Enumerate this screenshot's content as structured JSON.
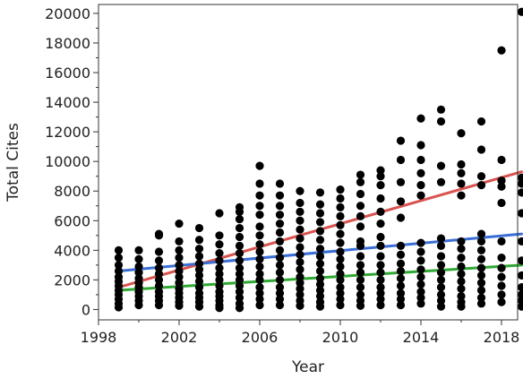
{
  "chart_data": {
    "type": "scatter",
    "xlabel": "Year",
    "ylabel": "Total Cites",
    "xlim": [
      1998,
      2018.8
    ],
    "ylim": [
      -700,
      20600
    ],
    "xticks": [
      1998,
      2002,
      2006,
      2010,
      2014,
      2018
    ],
    "xticks_minor": [
      2000,
      2004,
      2008,
      2012,
      2016
    ],
    "yticks": [
      0,
      2000,
      4000,
      6000,
      8000,
      10000,
      12000,
      14000,
      16000,
      18000,
      20000
    ],
    "yticks_minor": [
      1000,
      3000,
      5000,
      7000,
      9000,
      11000,
      13000,
      15000,
      17000,
      19000
    ],
    "grid": false,
    "point_color": "#000000",
    "points": [
      [
        1999,
        4000
      ],
      [
        1999,
        3500
      ],
      [
        1999,
        3000
      ],
      [
        1999,
        2600
      ],
      [
        1999,
        2200
      ],
      [
        1999,
        1900
      ],
      [
        1999,
        1600
      ],
      [
        1999,
        1300
      ],
      [
        1999,
        1000
      ],
      [
        1999,
        700
      ],
      [
        1999,
        400
      ],
      [
        1999,
        150
      ],
      [
        2000,
        4000
      ],
      [
        2000,
        3400
      ],
      [
        2000,
        2900
      ],
      [
        2000,
        2500
      ],
      [
        2000,
        2100
      ],
      [
        2000,
        1800
      ],
      [
        2000,
        1500
      ],
      [
        2000,
        1200
      ],
      [
        2000,
        900
      ],
      [
        2000,
        600
      ],
      [
        2000,
        300
      ],
      [
        2001,
        5100
      ],
      [
        2001,
        5000
      ],
      [
        2001,
        3900
      ],
      [
        2001,
        3300
      ],
      [
        2001,
        2800
      ],
      [
        2001,
        2400
      ],
      [
        2001,
        2000
      ],
      [
        2001,
        1600
      ],
      [
        2001,
        1200
      ],
      [
        2001,
        900
      ],
      [
        2001,
        600
      ],
      [
        2001,
        300
      ],
      [
        2002,
        5800
      ],
      [
        2002,
        4600
      ],
      [
        2002,
        4000
      ],
      [
        2002,
        3500
      ],
      [
        2002,
        3000
      ],
      [
        2002,
        2600
      ],
      [
        2002,
        2200
      ],
      [
        2002,
        1800
      ],
      [
        2002,
        1400
      ],
      [
        2002,
        1100
      ],
      [
        2002,
        800
      ],
      [
        2002,
        500
      ],
      [
        2002,
        250
      ],
      [
        2003,
        5500
      ],
      [
        2003,
        4700
      ],
      [
        2003,
        4100
      ],
      [
        2003,
        3600
      ],
      [
        2003,
        3100
      ],
      [
        2003,
        2700
      ],
      [
        2003,
        2300
      ],
      [
        2003,
        1900
      ],
      [
        2003,
        1500
      ],
      [
        2003,
        1100
      ],
      [
        2003,
        800
      ],
      [
        2003,
        500
      ],
      [
        2003,
        200
      ],
      [
        2004,
        6500
      ],
      [
        2004,
        5000
      ],
      [
        2004,
        4400
      ],
      [
        2004,
        3800
      ],
      [
        2004,
        3300
      ],
      [
        2004,
        2800
      ],
      [
        2004,
        2400
      ],
      [
        2004,
        2000
      ],
      [
        2004,
        1600
      ],
      [
        2004,
        1200
      ],
      [
        2004,
        900
      ],
      [
        2004,
        600
      ],
      [
        2004,
        300
      ],
      [
        2004,
        100
      ],
      [
        2005,
        6900
      ],
      [
        2005,
        6600
      ],
      [
        2005,
        6100
      ],
      [
        2005,
        5500
      ],
      [
        2005,
        4900
      ],
      [
        2005,
        4300
      ],
      [
        2005,
        3800
      ],
      [
        2005,
        3300
      ],
      [
        2005,
        2800
      ],
      [
        2005,
        2400
      ],
      [
        2005,
        2000
      ],
      [
        2005,
        1600
      ],
      [
        2005,
        1200
      ],
      [
        2005,
        800
      ],
      [
        2005,
        400
      ],
      [
        2005,
        100
      ],
      [
        2006,
        9700
      ],
      [
        2006,
        8500
      ],
      [
        2006,
        7700
      ],
      [
        2006,
        7000
      ],
      [
        2006,
        6400
      ],
      [
        2006,
        5600
      ],
      [
        2006,
        5000
      ],
      [
        2006,
        4400
      ],
      [
        2006,
        3900
      ],
      [
        2006,
        3400
      ],
      [
        2006,
        2900
      ],
      [
        2006,
        2400
      ],
      [
        2006,
        2000
      ],
      [
        2006,
        1500
      ],
      [
        2006,
        1100
      ],
      [
        2006,
        700
      ],
      [
        2006,
        300
      ],
      [
        2007,
        8500
      ],
      [
        2007,
        7700
      ],
      [
        2007,
        7000
      ],
      [
        2007,
        6400
      ],
      [
        2007,
        5800
      ],
      [
        2007,
        5200
      ],
      [
        2007,
        4600
      ],
      [
        2007,
        4000
      ],
      [
        2007,
        3500
      ],
      [
        2007,
        3000
      ],
      [
        2007,
        2500
      ],
      [
        2007,
        2000
      ],
      [
        2007,
        1500
      ],
      [
        2007,
        1100
      ],
      [
        2007,
        700
      ],
      [
        2007,
        300
      ],
      [
        2008,
        8000
      ],
      [
        2008,
        7200
      ],
      [
        2008,
        6600
      ],
      [
        2008,
        6000
      ],
      [
        2008,
        5400
      ],
      [
        2008,
        4800
      ],
      [
        2008,
        4200
      ],
      [
        2008,
        3700
      ],
      [
        2008,
        3200
      ],
      [
        2008,
        2700
      ],
      [
        2008,
        2200
      ],
      [
        2008,
        1800
      ],
      [
        2008,
        1400
      ],
      [
        2008,
        1000
      ],
      [
        2008,
        600
      ],
      [
        2008,
        250
      ],
      [
        2009,
        7900
      ],
      [
        2009,
        7100
      ],
      [
        2009,
        6500
      ],
      [
        2009,
        5900
      ],
      [
        2009,
        5300
      ],
      [
        2009,
        4700
      ],
      [
        2009,
        4100
      ],
      [
        2009,
        3600
      ],
      [
        2009,
        3100
      ],
      [
        2009,
        2600
      ],
      [
        2009,
        2100
      ],
      [
        2009,
        1700
      ],
      [
        2009,
        1300
      ],
      [
        2009,
        900
      ],
      [
        2009,
        500
      ],
      [
        2009,
        200
      ],
      [
        2010,
        8100
      ],
      [
        2010,
        7500
      ],
      [
        2010,
        6900
      ],
      [
        2010,
        6300
      ],
      [
        2010,
        5700
      ],
      [
        2010,
        5100
      ],
      [
        2010,
        4500
      ],
      [
        2010,
        3900
      ],
      [
        2010,
        3400
      ],
      [
        2010,
        2900
      ],
      [
        2010,
        2400
      ],
      [
        2010,
        2000
      ],
      [
        2010,
        1500
      ],
      [
        2010,
        1100
      ],
      [
        2010,
        700
      ],
      [
        2010,
        300
      ],
      [
        2011,
        9100
      ],
      [
        2011,
        8600
      ],
      [
        2011,
        7800
      ],
      [
        2011,
        7000
      ],
      [
        2011,
        6300
      ],
      [
        2011,
        5600
      ],
      [
        2011,
        4600
      ],
      [
        2011,
        4300
      ],
      [
        2011,
        3600
      ],
      [
        2011,
        3000
      ],
      [
        2011,
        2500
      ],
      [
        2011,
        2000
      ],
      [
        2011,
        1500
      ],
      [
        2011,
        1000
      ],
      [
        2011,
        600
      ],
      [
        2011,
        250
      ],
      [
        2012,
        9400
      ],
      [
        2012,
        9000
      ],
      [
        2012,
        8400
      ],
      [
        2012,
        7500
      ],
      [
        2012,
        6600
      ],
      [
        2012,
        5800
      ],
      [
        2012,
        4900
      ],
      [
        2012,
        4300
      ],
      [
        2012,
        3600
      ],
      [
        2012,
        3000
      ],
      [
        2012,
        2500
      ],
      [
        2012,
        2000
      ],
      [
        2012,
        1500
      ],
      [
        2012,
        1100
      ],
      [
        2012,
        700
      ],
      [
        2012,
        300
      ],
      [
        2013,
        11400
      ],
      [
        2013,
        10100
      ],
      [
        2013,
        8600
      ],
      [
        2013,
        7300
      ],
      [
        2013,
        6200
      ],
      [
        2013,
        4300
      ],
      [
        2013,
        3700
      ],
      [
        2013,
        3100
      ],
      [
        2013,
        2600
      ],
      [
        2013,
        2100
      ],
      [
        2013,
        1600
      ],
      [
        2013,
        1100
      ],
      [
        2013,
        700
      ],
      [
        2013,
        300
      ],
      [
        2014,
        12900
      ],
      [
        2014,
        11100
      ],
      [
        2014,
        10100
      ],
      [
        2014,
        9200
      ],
      [
        2014,
        8400
      ],
      [
        2014,
        7700
      ],
      [
        2014,
        4500
      ],
      [
        2014,
        3900
      ],
      [
        2014,
        3300
      ],
      [
        2014,
        2700
      ],
      [
        2014,
        2200
      ],
      [
        2014,
        1700
      ],
      [
        2014,
        1200
      ],
      [
        2014,
        800
      ],
      [
        2014,
        400
      ],
      [
        2015,
        13500
      ],
      [
        2015,
        12700
      ],
      [
        2015,
        9700
      ],
      [
        2015,
        8600
      ],
      [
        2015,
        4800
      ],
      [
        2015,
        4300
      ],
      [
        2015,
        3600
      ],
      [
        2015,
        3000
      ],
      [
        2015,
        2500
      ],
      [
        2015,
        2000
      ],
      [
        2015,
        1500
      ],
      [
        2015,
        1000
      ],
      [
        2015,
        600
      ],
      [
        2015,
        200
      ],
      [
        2016,
        11900
      ],
      [
        2016,
        9800
      ],
      [
        2016,
        9200
      ],
      [
        2016,
        8500
      ],
      [
        2016,
        7700
      ],
      [
        2016,
        4600
      ],
      [
        2016,
        4100
      ],
      [
        2016,
        3500
      ],
      [
        2016,
        2900
      ],
      [
        2016,
        2400
      ],
      [
        2016,
        1900
      ],
      [
        2016,
        1400
      ],
      [
        2016,
        900
      ],
      [
        2016,
        500
      ],
      [
        2016,
        200
      ],
      [
        2017,
        12700
      ],
      [
        2017,
        10800
      ],
      [
        2017,
        9000
      ],
      [
        2017,
        8400
      ],
      [
        2017,
        5100
      ],
      [
        2017,
        4600
      ],
      [
        2017,
        4000
      ],
      [
        2017,
        3400
      ],
      [
        2017,
        2800
      ],
      [
        2017,
        2300
      ],
      [
        2017,
        1800
      ],
      [
        2017,
        1300
      ],
      [
        2017,
        800
      ],
      [
        2017,
        400
      ],
      [
        2018,
        17500
      ],
      [
        2018,
        10100
      ],
      [
        2018,
        8700
      ],
      [
        2018,
        8300
      ],
      [
        2018,
        7200
      ],
      [
        2018,
        4600
      ],
      [
        2018,
        3500
      ],
      [
        2018,
        2800
      ],
      [
        2018,
        2200
      ],
      [
        2018,
        1600
      ],
      [
        2018,
        1000
      ],
      [
        2018,
        500
      ],
      [
        2019,
        20100
      ],
      [
        2019,
        8900
      ],
      [
        2019,
        8500
      ],
      [
        2019,
        7900
      ],
      [
        2019,
        6500
      ],
      [
        2019,
        4600
      ],
      [
        2019,
        3300
      ],
      [
        2019,
        2300
      ],
      [
        2019,
        1500
      ],
      [
        2019,
        1000
      ],
      [
        2019,
        600
      ],
      [
        2019,
        200
      ]
    ],
    "lines": [
      {
        "color": "#d9534f",
        "x": [
          1999,
          2019
        ],
        "y": [
          1500,
          9300
        ]
      },
      {
        "color": "#3a6ed6",
        "x": [
          1999,
          2019
        ],
        "y": [
          2600,
          5100
        ]
      },
      {
        "color": "#2fa833",
        "x": [
          1999,
          2019
        ],
        "y": [
          1300,
          3000
        ]
      }
    ]
  }
}
